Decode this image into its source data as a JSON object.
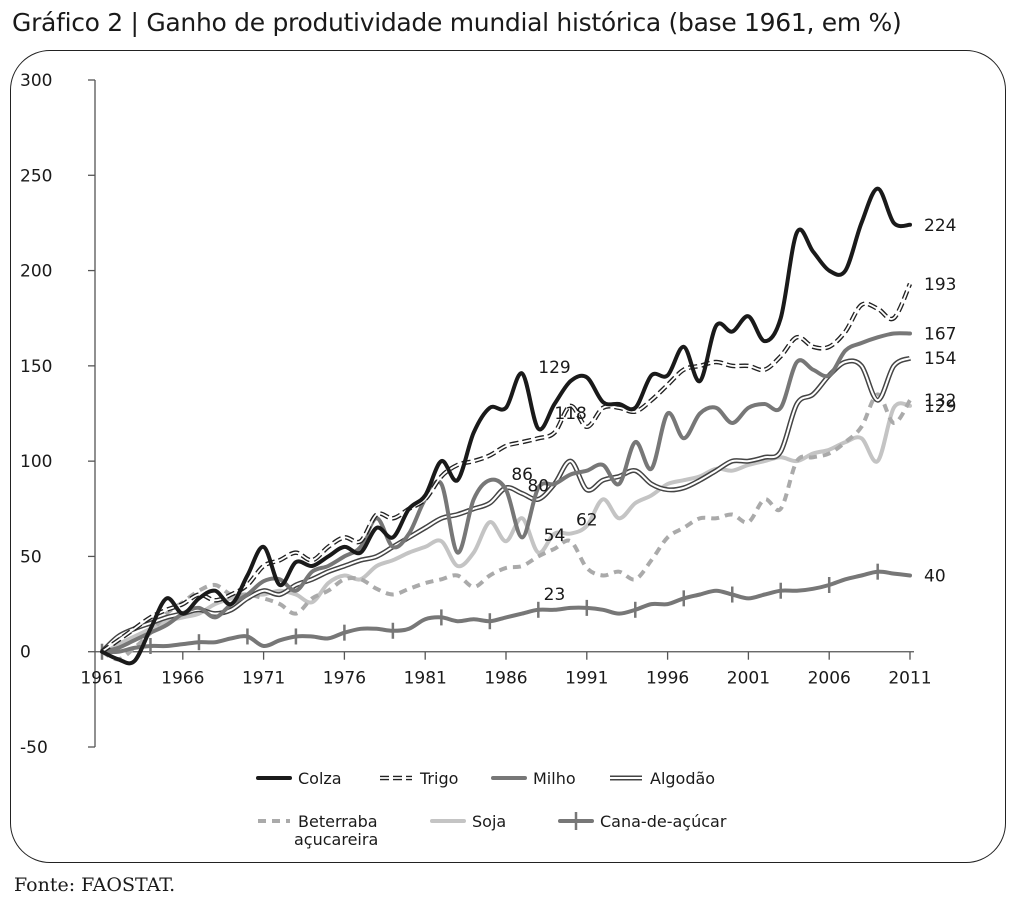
{
  "page": {
    "title": "Gráfico 2 | Ganho de produtividade mundial histórica (base 1961, em %)",
    "source": "Fonte: FAOSTAT."
  },
  "chart_data": {
    "type": "line",
    "title": "Gráfico 2 | Ganho de produtividade mundial histórica (base 1961, em %)",
    "xlabel": "",
    "ylabel": "",
    "ylim": [
      -50,
      300
    ],
    "xlim": [
      1961,
      2011
    ],
    "yticks": [
      "300",
      "250",
      "200",
      "150",
      "100",
      "50",
      "0",
      "-50"
    ],
    "ytick_values": [
      300,
      250,
      200,
      150,
      100,
      50,
      0,
      -50
    ],
    "xticks": [
      "1961",
      "1966",
      "1971",
      "1976",
      "1981",
      "1986",
      "1991",
      "1996",
      "2001",
      "2006",
      "2011"
    ],
    "xtick_values": [
      1961,
      1966,
      1971,
      1976,
      1981,
      1986,
      1991,
      1996,
      2001,
      2006,
      2011
    ],
    "grid": false,
    "legend_position": "bottom",
    "series": [
      {
        "name": "Colza",
        "color": "#1a1a1a",
        "style": "solid-thick",
        "end_label": "224",
        "x": [
          1961,
          1962,
          1963,
          1964,
          1965,
          1966,
          1967,
          1968,
          1969,
          1970,
          1971,
          1972,
          1973,
          1974,
          1975,
          1976,
          1977,
          1978,
          1979,
          1980,
          1981,
          1982,
          1983,
          1984,
          1985,
          1986,
          1987,
          1988,
          1989,
          1990,
          1991,
          1992,
          1993,
          1994,
          1995,
          1996,
          1997,
          1998,
          1999,
          2000,
          2001,
          2002,
          2003,
          2004,
          2005,
          2006,
          2007,
          2008,
          2009,
          2010,
          2011
        ],
        "y": [
          0,
          -4,
          -5,
          12,
          28,
          20,
          28,
          32,
          25,
          40,
          55,
          35,
          47,
          45,
          50,
          55,
          52,
          65,
          60,
          75,
          82,
          100,
          90,
          115,
          128,
          128,
          146,
          117,
          130,
          142,
          144,
          131,
          130,
          128,
          145,
          145,
          160,
          142,
          171,
          168,
          176,
          163,
          175,
          220,
          210,
          200,
          200,
          225,
          243,
          225,
          224
        ]
      },
      {
        "name": "Trigo",
        "color": "#222222",
        "style": "double-dashed",
        "end_label": "193",
        "x": [
          1961,
          1962,
          1963,
          1964,
          1965,
          1966,
          1967,
          1968,
          1969,
          1970,
          1971,
          1972,
          1973,
          1974,
          1975,
          1976,
          1977,
          1978,
          1979,
          1980,
          1981,
          1982,
          1983,
          1984,
          1985,
          1986,
          1987,
          1988,
          1989,
          1990,
          1991,
          1992,
          1993,
          1994,
          1995,
          1996,
          1997,
          1998,
          1999,
          2000,
          2001,
          2002,
          2003,
          2004,
          2005,
          2006,
          2007,
          2008,
          2009,
          2010,
          2011
        ],
        "y": [
          0,
          6,
          12,
          18,
          22,
          25,
          30,
          27,
          30,
          35,
          45,
          48,
          52,
          48,
          55,
          60,
          58,
          72,
          70,
          75,
          80,
          92,
          98,
          100,
          103,
          108,
          110,
          112,
          115,
          129,
          118,
          128,
          128,
          126,
          132,
          140,
          148,
          150,
          152,
          150,
          150,
          148,
          155,
          165,
          160,
          160,
          168,
          182,
          180,
          175,
          193
        ]
      },
      {
        "name": "Milho",
        "color": "#777777",
        "style": "solid-thick",
        "end_label": "167",
        "x": [
          1961,
          1962,
          1963,
          1964,
          1965,
          1966,
          1967,
          1968,
          1969,
          1970,
          1971,
          1972,
          1973,
          1974,
          1975,
          1976,
          1977,
          1978,
          1979,
          1980,
          1981,
          1982,
          1983,
          1984,
          1985,
          1986,
          1987,
          1988,
          1989,
          1990,
          1991,
          1992,
          1993,
          1994,
          1995,
          1996,
          1997,
          1998,
          1999,
          2000,
          2001,
          2002,
          2003,
          2004,
          2005,
          2006,
          2007,
          2008,
          2009,
          2010,
          2011
        ],
        "y": [
          0,
          2,
          6,
          10,
          14,
          20,
          23,
          18,
          25,
          30,
          37,
          38,
          32,
          42,
          45,
          50,
          55,
          70,
          55,
          62,
          80,
          88,
          52,
          80,
          90,
          85,
          60,
          86,
          88,
          93,
          95,
          98,
          88,
          110,
          96,
          125,
          112,
          125,
          128,
          120,
          128,
          130,
          128,
          152,
          148,
          145,
          158,
          162,
          165,
          167,
          167
        ]
      },
      {
        "name": "Algodão",
        "color": "#444444",
        "style": "double",
        "end_label": "154",
        "x": [
          1961,
          1962,
          1963,
          1964,
          1965,
          1966,
          1967,
          1968,
          1969,
          1970,
          1971,
          1972,
          1973,
          1974,
          1975,
          1976,
          1977,
          1978,
          1979,
          1980,
          1981,
          1982,
          1983,
          1984,
          1985,
          1986,
          1987,
          1988,
          1989,
          1990,
          1991,
          1992,
          1993,
          1994,
          1995,
          1996,
          1997,
          1998,
          1999,
          2000,
          2001,
          2002,
          2003,
          2004,
          2005,
          2006,
          2007,
          2008,
          2009,
          2010,
          2011
        ],
        "y": [
          0,
          8,
          12,
          15,
          18,
          20,
          22,
          20,
          22,
          28,
          32,
          30,
          35,
          38,
          42,
          45,
          48,
          50,
          55,
          60,
          65,
          70,
          72,
          75,
          78,
          86,
          83,
          80,
          88,
          100,
          85,
          90,
          92,
          95,
          88,
          85,
          86,
          90,
          95,
          100,
          100,
          102,
          105,
          130,
          135,
          145,
          152,
          150,
          132,
          150,
          154
        ]
      },
      {
        "name": "Beterraba açucareira",
        "color": "#aaaaaa",
        "style": "dashed-thick",
        "end_label": "132",
        "x": [
          1961,
          1962,
          1963,
          1964,
          1965,
          1966,
          1967,
          1968,
          1969,
          1970,
          1971,
          1972,
          1973,
          1974,
          1975,
          1976,
          1977,
          1978,
          1979,
          1980,
          1981,
          1982,
          1983,
          1984,
          1985,
          1986,
          1987,
          1988,
          1989,
          1990,
          1991,
          1992,
          1993,
          1994,
          1995,
          1996,
          1997,
          1998,
          1999,
          2000,
          2001,
          2002,
          2003,
          2004,
          2005,
          2006,
          2007,
          2008,
          2009,
          2010,
          2011
        ],
        "y": [
          0,
          -4,
          2,
          10,
          20,
          26,
          32,
          35,
          30,
          30,
          28,
          25,
          20,
          28,
          32,
          38,
          38,
          33,
          30,
          33,
          36,
          38,
          40,
          34,
          40,
          44,
          45,
          50,
          54,
          58,
          44,
          40,
          42,
          38,
          48,
          60,
          65,
          70,
          70,
          72,
          68,
          80,
          75,
          100,
          102,
          104,
          110,
          118,
          135,
          120,
          132
        ]
      },
      {
        "name": "Soja",
        "color": "#c4c4c4",
        "style": "solid-thick",
        "end_label": "129",
        "x": [
          1961,
          1962,
          1963,
          1964,
          1965,
          1966,
          1967,
          1968,
          1969,
          1970,
          1971,
          1972,
          1973,
          1974,
          1975,
          1976,
          1977,
          1978,
          1979,
          1980,
          1981,
          1982,
          1983,
          1984,
          1985,
          1986,
          1987,
          1988,
          1989,
          1990,
          1991,
          1992,
          1993,
          1994,
          1995,
          1996,
          1997,
          1998,
          1999,
          2000,
          2001,
          2002,
          2003,
          2004,
          2005,
          2006,
          2007,
          2008,
          2009,
          2010,
          2011
        ],
        "y": [
          0,
          4,
          8,
          12,
          16,
          18,
          20,
          25,
          28,
          30,
          30,
          32,
          30,
          26,
          36,
          40,
          38,
          45,
          48,
          52,
          55,
          58,
          45,
          52,
          68,
          58,
          70,
          52,
          62,
          62,
          66,
          80,
          70,
          78,
          82,
          88,
          90,
          92,
          96,
          95,
          98,
          100,
          102,
          100,
          104,
          106,
          110,
          112,
          100,
          128,
          129
        ]
      },
      {
        "name": "Cana-de-açúcar",
        "color": "#777777",
        "style": "solid-cross",
        "end_label": "40",
        "x": [
          1961,
          1962,
          1963,
          1964,
          1965,
          1966,
          1967,
          1968,
          1969,
          1970,
          1971,
          1972,
          1973,
          1974,
          1975,
          1976,
          1977,
          1978,
          1979,
          1980,
          1981,
          1982,
          1983,
          1984,
          1985,
          1986,
          1987,
          1988,
          1989,
          1990,
          1991,
          1992,
          1993,
          1994,
          1995,
          1996,
          1997,
          1998,
          1999,
          2000,
          2001,
          2002,
          2003,
          2004,
          2005,
          2006,
          2007,
          2008,
          2009,
          2010,
          2011
        ],
        "y": [
          0,
          0,
          2,
          3,
          3,
          4,
          5,
          5,
          7,
          8,
          3,
          6,
          8,
          8,
          7,
          10,
          12,
          12,
          11,
          12,
          17,
          18,
          16,
          17,
          16,
          18,
          20,
          22,
          22,
          23,
          23,
          22,
          20,
          22,
          25,
          25,
          28,
          30,
          32,
          30,
          28,
          30,
          32,
          32,
          33,
          35,
          38,
          40,
          42,
          41,
          40
        ]
      }
    ],
    "annotations": [
      {
        "text": "129",
        "x": 1989,
        "y": 142
      },
      {
        "text": "118",
        "x": 1990,
        "y": 118
      },
      {
        "text": "86",
        "x": 1987,
        "y": 86
      },
      {
        "text": "80",
        "x": 1988,
        "y": 80
      },
      {
        "text": "62",
        "x": 1991,
        "y": 62
      },
      {
        "text": "54",
        "x": 1989,
        "y": 54
      },
      {
        "text": "23",
        "x": 1989,
        "y": 23
      }
    ],
    "legend": [
      {
        "label": "Colza",
        "style": "solid-thick",
        "color": "#1a1a1a"
      },
      {
        "label": "Trigo",
        "style": "double-dashed",
        "color": "#222222"
      },
      {
        "label": "Milho",
        "style": "solid-thick",
        "color": "#777777"
      },
      {
        "label": "Algodão",
        "style": "double",
        "color": "#444444"
      },
      {
        "label": "Beterraba",
        "label2": "açucareira",
        "style": "dashed-thick",
        "color": "#aaaaaa"
      },
      {
        "label": "Soja",
        "style": "solid-thick",
        "color": "#c4c4c4"
      },
      {
        "label": "Cana-de-açúcar",
        "style": "solid-cross",
        "color": "#777777"
      }
    ]
  }
}
